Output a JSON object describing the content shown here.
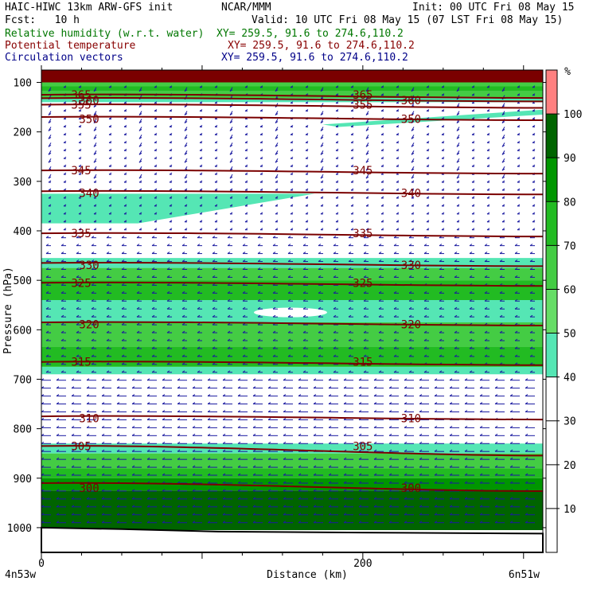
{
  "header": {
    "model": "HAIC-HIWC 13km ARW-GFS init",
    "center": "NCAR/MMM",
    "init": "Init: 00 UTC Fri 08 May 15",
    "fcst": "Fcst:   10 h",
    "valid": "Valid: 10 UTC Fri 08 May 15 (07 LST Fri 08 May 15)",
    "field1": "Relative humidity (w.r.t. water)",
    "field1_xy": "XY= 259.5, 91.6 to 274.6,110.2",
    "field2": "Potential temperature",
    "field2_xy": "XY= 259.5, 91.6 to 274.6,110.2",
    "field3": "Circulation vectors",
    "field3_xy": "XY= 259.5, 91.6 to 274.6,110.2",
    "color_field1": "#007700",
    "color_field2": "#880000",
    "color_field3": "#000088"
  },
  "chart_data": {
    "type": "heatmap",
    "xlabel": "Distance (km)",
    "ylabel": "Pressure (hPa)",
    "x_ticks": [
      "0",
      "200"
    ],
    "x_tick_values": [
      0,
      200
    ],
    "xlim": [
      0,
      312
    ],
    "ylim": [
      1050,
      75
    ],
    "y_ticks": [
      "100",
      "200",
      "300",
      "400",
      "500",
      "600",
      "700",
      "800",
      "900",
      "1000"
    ],
    "y_tick_values": [
      100,
      200,
      300,
      400,
      500,
      600,
      700,
      800,
      900,
      1000
    ],
    "x_left_label": "4n53w",
    "x_right_label": "6n51w",
    "colorbar": {
      "unit": "%",
      "levels": [
        100,
        90,
        80,
        70,
        60,
        50,
        40,
        30,
        20,
        10
      ],
      "colors": [
        "#ff8080",
        "#006400",
        "#009600",
        "#22bb22",
        "#44cc44",
        "#66dd66",
        "#55e6b4",
        "#ffffff",
        "#ffffff",
        "#ffffff",
        "#ffffff"
      ]
    },
    "rh_bands": [
      {
        "p_top": 100,
        "p_bot": 108,
        "rh": 60
      },
      {
        "p_top": 108,
        "p_bot": 118,
        "rh": 70
      },
      {
        "p_top": 118,
        "p_bot": 132,
        "rh": 60
      },
      {
        "p_top": 132,
        "p_bot": 140,
        "rh": 50
      },
      {
        "p_top": 325,
        "p_bot": 385,
        "rh": 50
      },
      {
        "p_top": 455,
        "p_bot": 475,
        "rh": 50
      },
      {
        "p_top": 475,
        "p_bot": 500,
        "rh": 60
      },
      {
        "p_top": 500,
        "p_bot": 540,
        "rh": 70
      },
      {
        "p_top": 540,
        "p_bot": 585,
        "rh": 50
      },
      {
        "p_top": 585,
        "p_bot": 635,
        "rh": 60
      },
      {
        "p_top": 635,
        "p_bot": 675,
        "rh": 70
      },
      {
        "p_top": 675,
        "p_bot": 690,
        "rh": 50
      },
      {
        "p_top": 830,
        "p_bot": 850,
        "rh": 50
      },
      {
        "p_top": 850,
        "p_bot": 880,
        "rh": 60
      },
      {
        "p_top": 880,
        "p_bot": 900,
        "rh": 70
      },
      {
        "p_top": 900,
        "p_bot": 925,
        "rh": 80
      },
      {
        "p_top": 925,
        "p_bot": 1005,
        "rh": 90
      }
    ],
    "theta_contours": [
      {
        "label": "365",
        "p": 125
      },
      {
        "label": "360",
        "p": 132
      },
      {
        "label": "355",
        "p": 145
      },
      {
        "label": "350",
        "p": 170
      },
      {
        "label": "345",
        "p": 278
      },
      {
        "label": "340",
        "p": 320
      },
      {
        "label": "335",
        "p": 405
      },
      {
        "label": "330",
        "p": 465
      },
      {
        "label": "325",
        "p": 505
      },
      {
        "label": "320",
        "p": 585
      },
      {
        "label": "315",
        "p": 665
      },
      {
        "label": "310",
        "p": 775
      },
      {
        "label": "305",
        "p": 835
      },
      {
        "label": "300",
        "p": 910
      }
    ],
    "terrain_top_hPa": 1000
  }
}
